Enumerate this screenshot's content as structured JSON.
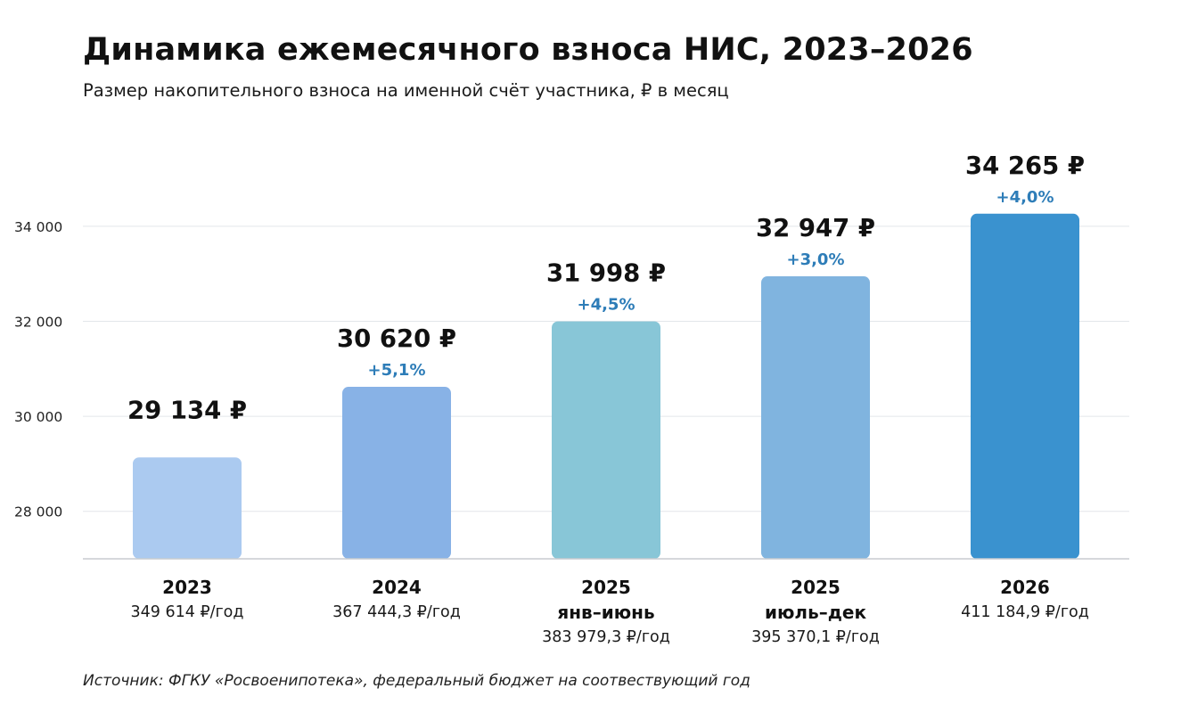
{
  "title": "Динамика ежемесячного взноса НИС, 2023–2026",
  "subtitle": "Размер накопительного взноса на именной счёт участника, ₽ в месяц",
  "source": "Источник: ФГКУ «Росвоенипотека», федеральный бюджет на соотвествующий год",
  "chart_data": {
    "type": "bar",
    "categories": [
      "2023",
      "2024",
      "2025 янв–июнь",
      "2025 июль–дек",
      "2026"
    ],
    "values": [
      29134,
      30620,
      31998,
      32947,
      34265
    ],
    "value_labels": [
      "29 134 ₽",
      "30 620 ₽",
      "31 998 ₽",
      "32 947 ₽",
      "34 265 ₽"
    ],
    "growth_labels": [
      "",
      "+5,1%",
      "+4,5%",
      "+3,0%",
      "+4,0%"
    ],
    "ylim": [
      27000,
      36000
    ],
    "yticks": [
      28000,
      30000,
      32000,
      34000
    ],
    "ytick_labels": [
      "28 000",
      "30 000",
      "32 000",
      "34 000"
    ],
    "grid": true,
    "legend": "none",
    "bar_colors": [
      "#abcaf0",
      "#88b2e6",
      "#88c6d7",
      "#80b4df",
      "#3a92cf"
    ],
    "growth_color": "#2e7db8"
  },
  "categories_display": [
    {
      "year": "2023",
      "sub": "",
      "annual": "349 614 ₽/год"
    },
    {
      "year": "2024",
      "sub": "",
      "annual": "367 444,3 ₽/год"
    },
    {
      "year": "2025",
      "sub": "янв–июнь",
      "annual": "383 979,3 ₽/год"
    },
    {
      "year": "2025",
      "sub": "июль–дек",
      "annual": "395 370,1 ₽/год"
    },
    {
      "year": "2026",
      "sub": "",
      "annual": "411 184,9 ₽/год"
    }
  ]
}
